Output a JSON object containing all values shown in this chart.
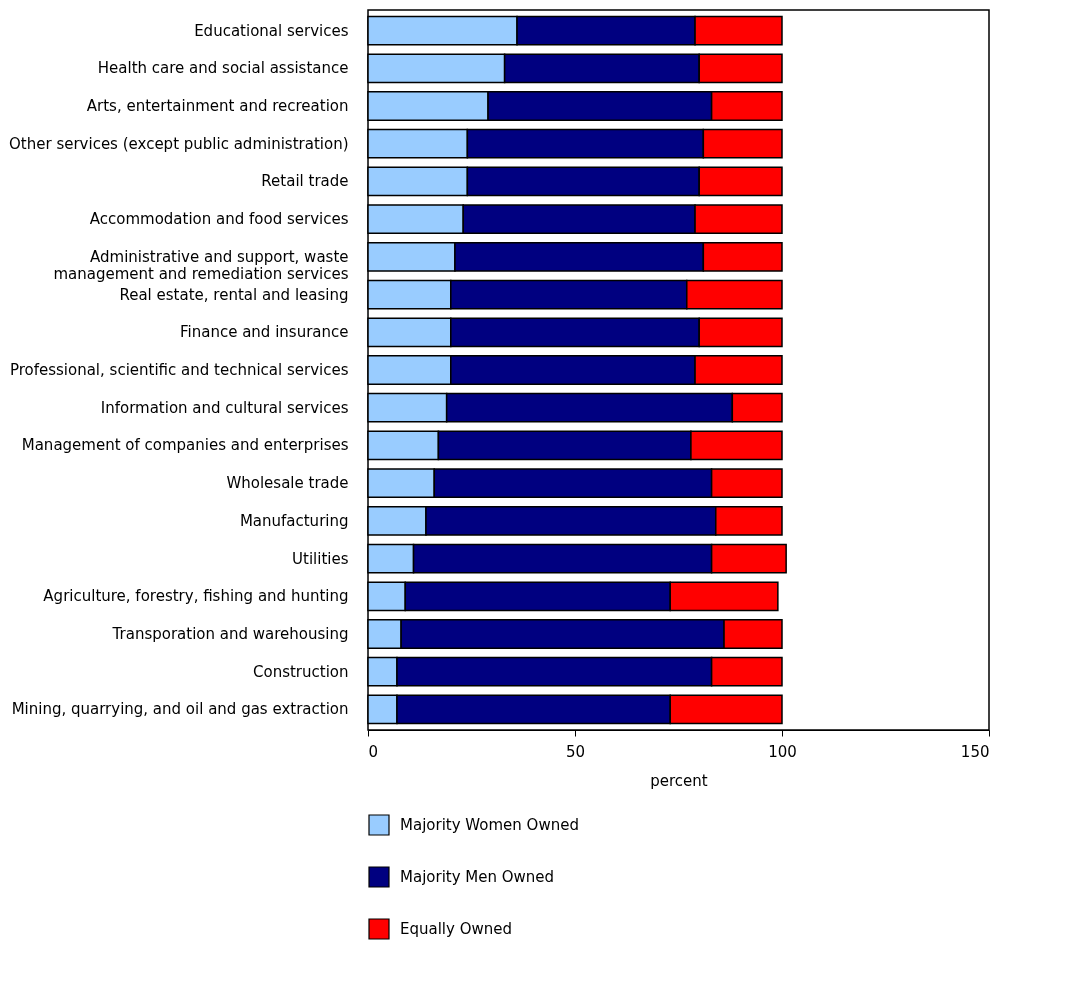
{
  "chart_data": {
    "type": "bar",
    "orientation": "horizontal",
    "stacked": true,
    "xlabel": "percent",
    "legend": "bottom",
    "grid": false,
    "categories": [
      "Educational services",
      "Health care and social assistance",
      "Arts, entertainment and recreation",
      "Other services (except public administration)",
      "Retail trade",
      "Accommodation and food services",
      "Administrative and support, waste management and remediation services",
      "Real estate, rental and leasing",
      "Finance and insurance",
      "Professional, scientific and technical services",
      "Information and cultural services",
      "Management of companies and enterprises",
      "Wholesale trade",
      "Manufacturing",
      "Utilities",
      "Agriculture, forestry, fishing and hunting",
      "Transporation and warehousing",
      "Construction",
      "Mining, quarrying, and oil and gas extraction"
    ],
    "series": [
      {
        "name": "Majority Women Owned",
        "color": "#99ccff",
        "values": [
          36,
          33,
          29,
          24,
          24,
          23,
          21,
          20,
          20,
          20,
          19,
          17,
          16,
          14,
          11,
          9,
          8,
          7,
          7
        ]
      },
      {
        "name": "Majority Men Owned",
        "color": "#000080",
        "values": [
          43,
          47,
          54,
          57,
          56,
          56,
          60,
          57,
          60,
          59,
          69,
          61,
          67,
          70,
          72,
          64,
          78,
          76,
          66
        ]
      },
      {
        "name": "Equally Owned",
        "color": "#ff0000",
        "values": [
          21,
          20,
          17,
          19,
          20,
          21,
          19,
          23,
          20,
          21,
          12,
          22,
          17,
          16,
          18,
          26,
          14,
          17,
          27
        ]
      }
    ],
    "xlim": [
      0,
      150
    ],
    "xticks": [
      0,
      50,
      100,
      150
    ]
  }
}
